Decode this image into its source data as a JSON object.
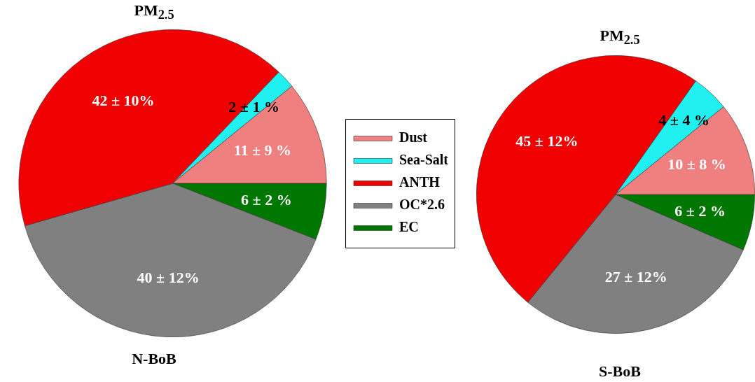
{
  "chart_data": [
    {
      "type": "pie",
      "title": "PM$_{2.5}$",
      "subtitle": "N-BoB",
      "categories": [
        "Dust",
        "Sea-Salt",
        "ANTH",
        "OC*2.6",
        "EC"
      ],
      "values": [
        11,
        2,
        42,
        40,
        6
      ],
      "value_labels": [
        "11 ± 9 %",
        "2 ± 1 %",
        "42 ± 10%",
        "40 ± 12%",
        "6 ± 2 %"
      ],
      "colors": [
        "#f08080",
        "#20f0f0",
        "#f00000",
        "#808080",
        "#007800"
      ],
      "legend": "right"
    },
    {
      "type": "pie",
      "title": "PM$_{2.5}$",
      "subtitle": "S-BoB",
      "categories": [
        null,
        null,
        null,
        null,
        null
      ],
      "values": [
        10,
        4,
        45,
        27,
        6
      ],
      "value_labels": [
        "10 ± 8 %",
        "4 ± 4 %",
        "45 ± 12%",
        "27 ± 12%",
        "6 ± 2 %"
      ],
      "colors": [
        "#f08080",
        "#20f0f0",
        "#f00000",
        "#808080",
        "#007800"
      ]
    }
  ]
}
